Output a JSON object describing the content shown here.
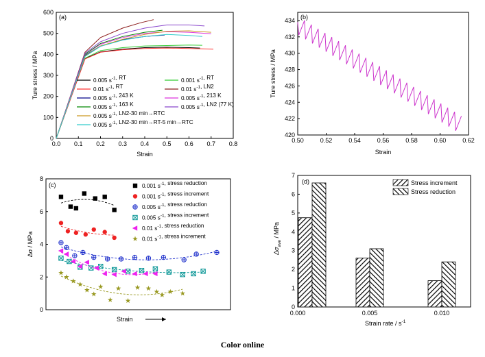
{
  "caption": "Color online",
  "colors": {
    "axis": "#000000",
    "magenta": "#cc33cc"
  },
  "chart_data": [
    {
      "panel": "(a)",
      "type": "line",
      "xlabel": "Strain",
      "ylabel": "Ture stress / MPa",
      "xlim": [
        0,
        0.8
      ],
      "ylim": [
        0,
        600
      ],
      "xticks": [
        "0.0",
        "0.1",
        "0.2",
        "0.3",
        "0.4",
        "0.5",
        "0.6",
        "0.7",
        "0.8"
      ],
      "yticks": [
        "0",
        "100",
        "200",
        "300",
        "400",
        "500",
        "600"
      ],
      "legend_position": "center-bottom",
      "series": [
        {
          "name": "0.005 s⁻¹, RT",
          "color": "#000000",
          "x": [
            0,
            0.13,
            0.2,
            0.3,
            0.4,
            0.5,
            0.6,
            0.65
          ],
          "y": [
            0,
            380,
            412,
            425,
            432,
            434,
            432,
            430
          ]
        },
        {
          "name": "0.001 s⁻¹, RT",
          "color": "#33cc33",
          "x": [
            0,
            0.13,
            0.2,
            0.3,
            0.4,
            0.5,
            0.6,
            0.66
          ],
          "y": [
            0,
            382,
            418,
            432,
            440,
            442,
            444,
            443
          ]
        },
        {
          "name": "0.01 s⁻¹, RT",
          "color": "#ff3333",
          "x": [
            0,
            0.13,
            0.2,
            0.3,
            0.4,
            0.5,
            0.6,
            0.71
          ],
          "y": [
            0,
            378,
            410,
            422,
            428,
            430,
            428,
            425
          ]
        },
        {
          "name": "0.01 s⁻¹, LN2",
          "color": "#8b1a1a",
          "x": [
            0,
            0.13,
            0.2,
            0.3,
            0.38,
            0.44
          ],
          "y": [
            0,
            410,
            480,
            525,
            550,
            565
          ]
        },
        {
          "name": "0.005 s⁻¹, 243 K",
          "color": "#000088",
          "x": [
            0,
            0.13,
            0.2,
            0.3,
            0.4,
            0.49
          ],
          "y": [
            0,
            395,
            440,
            470,
            485,
            492
          ]
        },
        {
          "name": "0.005 s⁻¹, 213 K",
          "color": "#dd33dd",
          "x": [
            0,
            0.13,
            0.2,
            0.3,
            0.4,
            0.5,
            0.6,
            0.7
          ],
          "y": [
            0,
            400,
            448,
            480,
            500,
            508,
            505,
            498
          ]
        },
        {
          "name": "0.005 s⁻¹, 163 K",
          "color": "#008800",
          "x": [
            0,
            0.13,
            0.2,
            0.3,
            0.4,
            0.48
          ],
          "y": [
            0,
            400,
            452,
            485,
            505,
            515
          ]
        },
        {
          "name": "0.005 s⁻¹, LN2 (77 K)",
          "color": "#8844cc",
          "x": [
            0,
            0.13,
            0.2,
            0.3,
            0.4,
            0.5,
            0.6,
            0.67
          ],
          "y": [
            0,
            405,
            460,
            500,
            525,
            540,
            540,
            535
          ]
        },
        {
          "name": "0.005 s⁻¹, LN2-30 min→RTC",
          "color": "#cc9922",
          "x": [
            0,
            0.13,
            0.2,
            0.3,
            0.4,
            0.5,
            0.6,
            0.7
          ],
          "y": [
            0,
            392,
            440,
            472,
            495,
            510,
            512,
            505
          ]
        },
        {
          "name": "0.005 s⁻¹, LN2-30 min→RT-5 min→RTC",
          "color": "#33cccc",
          "x": [
            0,
            0.13,
            0.2,
            0.3,
            0.4,
            0.5,
            0.6,
            0.66
          ],
          "y": [
            0,
            390,
            438,
            468,
            485,
            495,
            490,
            485
          ]
        }
      ]
    },
    {
      "panel": "(b)",
      "type": "line",
      "xlabel": "Strain",
      "ylabel": "Ture stress / MPa",
      "xlim": [
        0.5,
        0.62
      ],
      "ylim": [
        420,
        435
      ],
      "xticks": [
        "0.50",
        "0.52",
        "0.54",
        "0.56",
        "0.58",
        "0.60",
        "0.62"
      ],
      "yticks": [
        "420",
        "422",
        "424",
        "426",
        "428",
        "430",
        "432",
        "434"
      ],
      "series": [
        {
          "name": "",
          "color": "#cc33cc",
          "start": [
            0.5,
            433.8
          ],
          "end": [
            0.615,
            421.6
          ],
          "serration_count": 24,
          "serration_drop": 1.8
        }
      ]
    },
    {
      "panel": "(c)",
      "type": "scatter",
      "xlabel": "Strain",
      "ylabel": "Δσ / MPa",
      "ylim": [
        0,
        8
      ],
      "yticks": [
        "0",
        "2",
        "4",
        "6",
        "8"
      ],
      "legend_position": "top-right",
      "series": [
        {
          "name": "0.001 s⁻¹, stress reduction",
          "color": "#000000",
          "marker": "square",
          "points": [
            [
              0.06,
              6.9
            ],
            [
              0.13,
              6.3
            ],
            [
              0.17,
              6.2
            ],
            [
              0.23,
              7.1
            ],
            [
              0.31,
              6.8
            ],
            [
              0.38,
              6.9
            ],
            [
              0.45,
              6.1
            ]
          ]
        },
        {
          "name": "0.001 s⁻¹, stress increment",
          "color": "#ee2222",
          "marker": "circle",
          "points": [
            [
              0.06,
              5.3
            ],
            [
              0.11,
              4.8
            ],
            [
              0.17,
              4.7
            ],
            [
              0.24,
              4.6
            ],
            [
              0.3,
              4.9
            ],
            [
              0.38,
              4.75
            ],
            [
              0.45,
              4.4
            ]
          ]
        },
        {
          "name": "0.005 s⁻¹, stress reduction",
          "color": "#2233cc",
          "marker": "circle-plus",
          "points": [
            [
              0.06,
              4.1
            ],
            [
              0.1,
              3.8
            ],
            [
              0.16,
              3.3
            ],
            [
              0.22,
              3.5
            ],
            [
              0.3,
              3.2
            ],
            [
              0.4,
              3.1
            ],
            [
              0.5,
              3.1
            ],
            [
              0.6,
              3.2
            ],
            [
              0.7,
              3.15
            ],
            [
              0.81,
              3.2
            ],
            [
              0.96,
              3.05
            ],
            [
              1.05,
              3.4
            ],
            [
              1.2,
              3.5
            ]
          ]
        },
        {
          "name": "0.005 s⁻¹, stress increment",
          "color": "#119999",
          "marker": "square-x",
          "points": [
            [
              0.06,
              3.15
            ],
            [
              0.12,
              2.95
            ],
            [
              0.2,
              2.6
            ],
            [
              0.28,
              2.55
            ],
            [
              0.35,
              2.65
            ],
            [
              0.45,
              2.45
            ],
            [
              0.55,
              2.35
            ],
            [
              0.65,
              2.4
            ],
            [
              0.75,
              2.5
            ],
            [
              0.85,
              2.3
            ],
            [
              0.95,
              2.15
            ],
            [
              1.03,
              2.2
            ],
            [
              1.1,
              2.35
            ]
          ]
        },
        {
          "name": "0.01 s⁻¹, stress reduction",
          "color": "#ee22ee",
          "marker": "triangle-left",
          "points": [
            [
              0.06,
              3.6
            ],
            [
              0.1,
              3.4
            ],
            [
              0.15,
              2.95
            ],
            [
              0.2,
              2.65
            ],
            [
              0.25,
              2.9
            ],
            [
              0.32,
              2.55
            ],
            [
              0.38,
              2.2
            ],
            [
              0.45,
              2.15
            ],
            [
              0.52,
              2.35
            ],
            [
              0.6,
              2.2
            ],
            [
              0.68,
              2.2
            ],
            [
              0.75,
              2.2
            ]
          ]
        },
        {
          "name": "0.01 s⁻¹, stress increment",
          "color": "#999922",
          "marker": "star",
          "points": [
            [
              0.06,
              2.25
            ],
            [
              0.1,
              2.0
            ],
            [
              0.15,
              1.75
            ],
            [
              0.2,
              1.55
            ],
            [
              0.25,
              1.2
            ],
            [
              0.3,
              0.95
            ],
            [
              0.35,
              1.4
            ],
            [
              0.42,
              0.6
            ],
            [
              0.48,
              1.3
            ],
            [
              0.55,
              0.55
            ],
            [
              0.62,
              1.35
            ],
            [
              0.7,
              1.3
            ],
            [
              0.76,
              1.1
            ],
            [
              0.8,
              0.9
            ],
            [
              0.86,
              1.1
            ],
            [
              0.95,
              1.0
            ]
          ]
        }
      ],
      "annotation": "Strain"
    },
    {
      "panel": "(d)",
      "type": "bar",
      "xlabel": "Strain rate / s⁻¹",
      "ylabel": "Δσ_ave / MPa",
      "xlim": [
        0,
        0.012
      ],
      "ylim": [
        0,
        7
      ],
      "xticks": [
        "0.000",
        "0.005",
        "0.010"
      ],
      "yticks": [
        "0",
        "1",
        "2",
        "3",
        "4",
        "5",
        "6",
        "7"
      ],
      "categories": [
        0.001,
        0.005,
        0.01
      ],
      "legend_position": "top-right",
      "series": [
        {
          "name": "Stress increment",
          "values": [
            4.75,
            2.6,
            1.4
          ]
        },
        {
          "name": "Stress reduction",
          "values": [
            6.6,
            3.1,
            2.4
          ]
        }
      ]
    }
  ]
}
